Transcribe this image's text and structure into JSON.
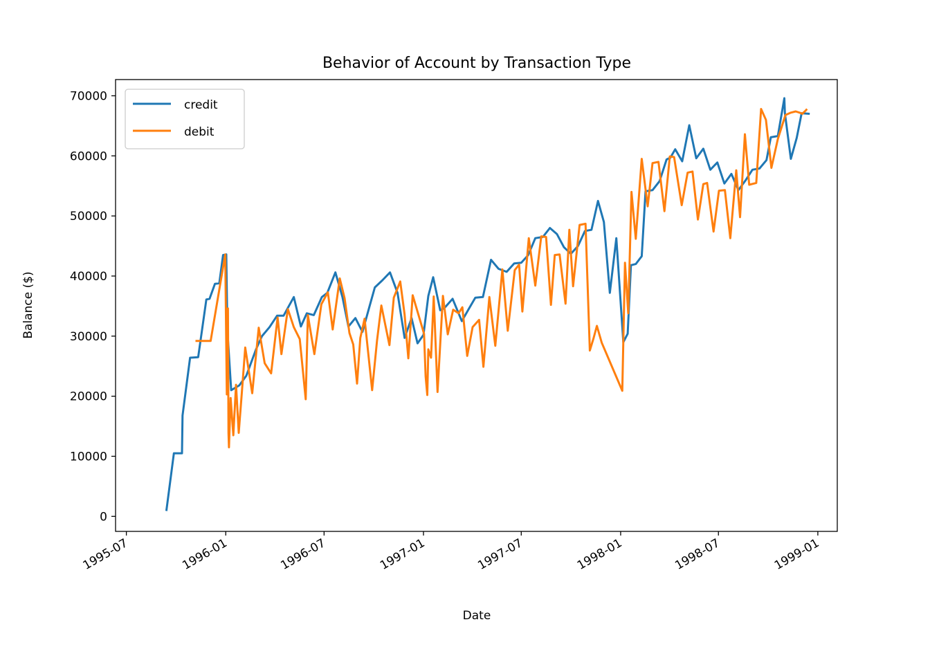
{
  "chart_data": {
    "type": "line",
    "title": "Behavior of Account by Transaction Type",
    "xlabel": "Date",
    "ylabel": "Balance ($)",
    "xlim": [
      "1995-06-11",
      "1999-02-06"
    ],
    "ylim": [
      -2500,
      72700
    ],
    "x_ticks": [
      "1995-07",
      "1996-01",
      "1996-07",
      "1997-01",
      "1997-07",
      "1998-01",
      "1998-07",
      "1999-01"
    ],
    "y_ticks": [
      0,
      10000,
      20000,
      30000,
      40000,
      50000,
      60000,
      70000
    ],
    "y_tick_labels": [
      "0",
      "10000",
      "20000",
      "30000",
      "40000",
      "50000",
      "60000",
      "70000"
    ],
    "legend_position": "upper-left",
    "grid": false,
    "series": [
      {
        "name": "credit",
        "color": "#1f77b4",
        "x": [
          "1995-09-13",
          "1995-09-27",
          "1995-10-12",
          "1995-10-13",
          "1995-10-27",
          "1995-11-11",
          "1995-11-26",
          "1995-12-02",
          "1995-12-12",
          "1995-12-20",
          "1995-12-27",
          "1996-01-02",
          "1996-01-04",
          "1996-01-11",
          "1996-01-26",
          "1996-02-08",
          "1996-02-26",
          "1996-03-08",
          "1996-03-22",
          "1996-04-05",
          "1996-04-17",
          "1996-05-06",
          "1996-05-19",
          "1996-05-30",
          "1996-06-12",
          "1996-06-27",
          "1996-07-07",
          "1996-07-22",
          "1996-08-04",
          "1996-08-15",
          "1996-08-28",
          "1996-09-10",
          "1996-09-23",
          "1996-10-03",
          "1996-10-17",
          "1996-10-31",
          "1996-11-14",
          "1996-11-27",
          "1996-12-10",
          "1996-12-21",
          "1997-01-01",
          "1997-01-10",
          "1997-01-19",
          "1997-02-01",
          "1997-02-09",
          "1997-02-24",
          "1997-03-13",
          "1997-03-25",
          "1997-04-07",
          "1997-04-21",
          "1997-05-06",
          "1997-05-20",
          "1997-06-04",
          "1997-06-18",
          "1997-07-01",
          "1997-07-14",
          "1997-07-27",
          "1997-08-10",
          "1997-08-23",
          "1997-09-05",
          "1997-09-18",
          "1997-10-01",
          "1997-10-14",
          "1997-10-27",
          "1997-11-08",
          "1997-11-20",
          "1997-12-01",
          "1997-12-12",
          "1997-12-24",
          "1998-01-06",
          "1998-01-14",
          "1998-01-20",
          "1998-01-29",
          "1998-02-09",
          "1998-02-16",
          "1998-03-01",
          "1998-03-14",
          "1998-03-27",
          "1998-04-03",
          "1998-04-12",
          "1998-04-25",
          "1998-05-08",
          "1998-05-21",
          "1998-06-03",
          "1998-06-16",
          "1998-06-29",
          "1998-07-12",
          "1998-07-25",
          "1998-08-07",
          "1998-08-20",
          "1998-09-02",
          "1998-09-15",
          "1998-09-28",
          "1998-10-06",
          "1998-10-19",
          "1998-10-31",
          "1998-11-01",
          "1998-11-12",
          "1998-11-23",
          "1998-12-02",
          "1998-12-17"
        ],
        "values": [
          900,
          10500,
          10500,
          16800,
          26400,
          26500,
          36100,
          36200,
          38700,
          38800,
          43500,
          43600,
          31000,
          21000,
          21800,
          23400,
          27800,
          30000,
          31500,
          33400,
          33400,
          36500,
          31600,
          33800,
          33500,
          36500,
          37200,
          40600,
          36500,
          31600,
          33000,
          30700,
          34900,
          38100,
          39300,
          40600,
          37200,
          29700,
          33000,
          28800,
          30200,
          36700,
          39800,
          34300,
          34700,
          36200,
          32500,
          34400,
          36400,
          36500,
          42700,
          41200,
          40700,
          42100,
          42200,
          43500,
          46300,
          46500,
          48000,
          47000,
          44800,
          43700,
          45000,
          47500,
          47700,
          52500,
          49000,
          37200,
          46300,
          29000,
          30400,
          41800,
          42000,
          43300,
          54100,
          54300,
          55800,
          59400,
          59700,
          61100,
          59100,
          65100,
          59600,
          61200,
          57700,
          58900,
          55400,
          57000,
          54300,
          55900,
          57700,
          57900,
          59300,
          63100,
          63300,
          69600,
          67100,
          59500,
          63000,
          67100,
          67000
        ]
      },
      {
        "name": "debit",
        "color": "#ff7f0e",
        "x": [
          "1995-11-06",
          "1995-11-20",
          "1995-12-04",
          "1995-12-31",
          "1996-01-03",
          "1996-01-05",
          "1996-01-06",
          "1996-01-07",
          "1996-01-10",
          "1996-01-15",
          "1996-01-20",
          "1996-01-25",
          "1996-01-31",
          "1996-02-06",
          "1996-02-19",
          "1996-03-02",
          "1996-03-13",
          "1996-03-25",
          "1996-04-06",
          "1996-04-13",
          "1996-04-25",
          "1996-05-06",
          "1996-05-17",
          "1996-05-28",
          "1996-06-01",
          "1996-06-13",
          "1996-06-26",
          "1996-07-08",
          "1996-07-17",
          "1996-07-30",
          "1996-08-08",
          "1996-08-17",
          "1996-08-24",
          "1996-08-31",
          "1996-09-06",
          "1996-09-14",
          "1996-09-28",
          "1996-10-07",
          "1996-10-15",
          "1996-10-30",
          "1996-11-07",
          "1996-11-19",
          "1996-11-27",
          "1996-12-04",
          "1996-12-12",
          "1997-01-02",
          "1997-01-05",
          "1997-01-08",
          "1997-01-10",
          "1997-01-15",
          "1997-01-20",
          "1997-01-27",
          "1997-02-06",
          "1997-02-15",
          "1997-02-25",
          "1997-03-07",
          "1997-03-14",
          "1997-03-23",
          "1997-04-02",
          "1997-04-14",
          "1997-04-22",
          "1997-05-03",
          "1997-05-14",
          "1997-05-27",
          "1997-06-06",
          "1997-06-19",
          "1997-06-27",
          "1997-07-03",
          "1997-07-15",
          "1997-07-27",
          "1997-08-07",
          "1997-08-16",
          "1997-08-25",
          "1997-09-01",
          "1997-09-10",
          "1997-09-21",
          "1997-09-28",
          "1997-10-05",
          "1997-10-17",
          "1997-10-28",
          "1997-11-05",
          "1997-11-12",
          "1997-11-18",
          "1997-11-27",
          "1998-01-04",
          "1998-01-09",
          "1998-01-15",
          "1998-01-21",
          "1998-01-29",
          "1998-02-09",
          "1998-02-20",
          "1998-03-01",
          "1998-03-12",
          "1998-03-23",
          "1998-04-02",
          "1998-04-10",
          "1998-04-24",
          "1998-05-05",
          "1998-05-14",
          "1998-05-24",
          "1998-06-03",
          "1998-06-10",
          "1998-06-22",
          "1998-07-02",
          "1998-07-13",
          "1998-07-23",
          "1998-08-03",
          "1998-08-10",
          "1998-08-19",
          "1998-08-27",
          "1998-09-09",
          "1998-09-18",
          "1998-09-27",
          "1998-10-07",
          "1998-10-19",
          "1998-11-02",
          "1998-11-12",
          "1998-11-21",
          "1998-12-01",
          "1998-12-03",
          "1998-12-09",
          "1998-12-12"
        ],
        "values": [
          29200,
          29200,
          29200,
          43600,
          20300,
          34600,
          13900,
          11500,
          19700,
          13500,
          21900,
          13900,
          20900,
          28100,
          20500,
          31400,
          25500,
          23800,
          33100,
          27000,
          34500,
          31500,
          29500,
          19500,
          33500,
          27000,
          35300,
          37300,
          31100,
          39600,
          36300,
          30500,
          28600,
          22100,
          29700,
          32900,
          21000,
          29300,
          35100,
          28500,
          36400,
          39100,
          33600,
          26300,
          36800,
          30400,
          23300,
          20200,
          27800,
          26400,
          36600,
          20700,
          36700,
          30300,
          34400,
          33800,
          34800,
          26700,
          31500,
          32700,
          24900,
          36500,
          28400,
          41100,
          30900,
          41000,
          41900,
          34100,
          46300,
          38400,
          46600,
          46500,
          35200,
          43500,
          43600,
          35400,
          47700,
          38300,
          48500,
          48700,
          27600,
          29700,
          31700,
          28900,
          20900,
          42200,
          33800,
          54000,
          46200,
          59500,
          51600,
          58800,
          59000,
          50800,
          59900,
          59800,
          51800,
          57200,
          57400,
          49400,
          55300,
          55500,
          47400,
          54200,
          54300,
          46300,
          57600,
          49800,
          63600,
          55200,
          55500,
          67800,
          66000,
          58000,
          62800,
          66800,
          67200,
          67400,
          67100,
          67000,
          67500,
          67800
        ]
      }
    ]
  }
}
